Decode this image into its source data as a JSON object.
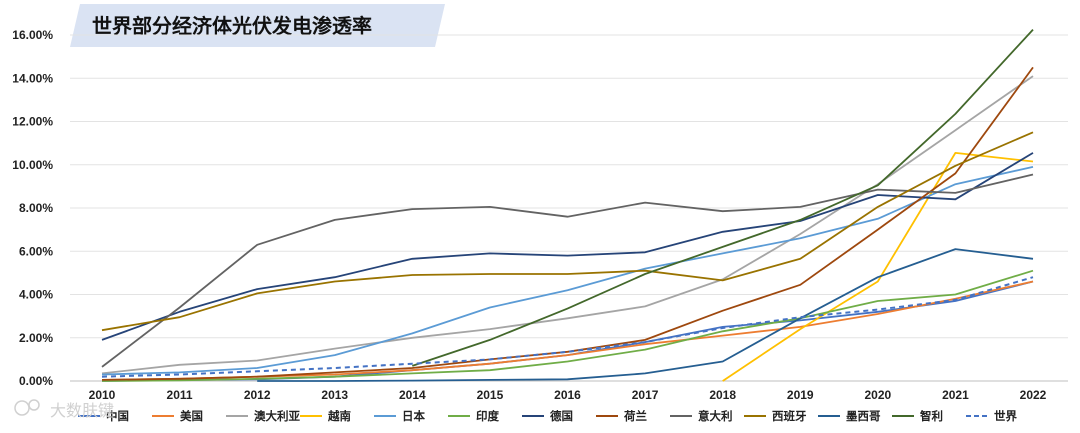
{
  "chart_data": {
    "type": "line",
    "title": "世界部分经济体光伏发电渗透率",
    "xlabel": "",
    "ylabel": "",
    "x": [
      "2010",
      "2011",
      "2012",
      "2013",
      "2014",
      "2015",
      "2016",
      "2017",
      "2018",
      "2019",
      "2020",
      "2021",
      "2022"
    ],
    "ylim": [
      0,
      16
    ],
    "yticks": [
      "0.00%",
      "2.00%",
      "4.00%",
      "6.00%",
      "8.00%",
      "10.00%",
      "12.00%",
      "14.00%",
      "16.00%"
    ],
    "grid": true,
    "legend_position": "bottom",
    "series": [
      {
        "name": "中国",
        "color": "#4472c4",
        "dash": false,
        "values": [
          0.0,
          0.05,
          0.08,
          0.2,
          0.5,
          0.8,
          1.2,
          1.8,
          2.5,
          2.8,
          3.2,
          3.7,
          4.6
        ]
      },
      {
        "name": "美国",
        "color": "#ed7d31",
        "dash": false,
        "values": [
          0.05,
          0.1,
          0.2,
          0.3,
          0.5,
          0.8,
          1.2,
          1.7,
          2.1,
          2.5,
          3.1,
          3.8,
          4.6
        ]
      },
      {
        "name": "澳大利亚",
        "color": "#a5a5a5",
        "dash": false,
        "values": [
          0.35,
          0.75,
          0.95,
          1.5,
          2.0,
          2.4,
          2.9,
          3.45,
          4.7,
          6.8,
          9.1,
          11.6,
          14.1
        ]
      },
      {
        "name": "越南",
        "color": "#ffc000",
        "dash": false,
        "values": [
          null,
          null,
          null,
          null,
          null,
          null,
          null,
          null,
          0.0,
          2.4,
          4.6,
          10.55,
          10.15
        ]
      },
      {
        "name": "日本",
        "color": "#5b9bd5",
        "dash": false,
        "values": [
          0.3,
          0.4,
          0.6,
          1.2,
          2.2,
          3.4,
          4.2,
          5.2,
          5.9,
          6.6,
          7.5,
          9.1,
          9.9
        ]
      },
      {
        "name": "印度",
        "color": "#70ad47",
        "dash": false,
        "values": [
          0.0,
          0.03,
          0.1,
          0.2,
          0.35,
          0.5,
          0.9,
          1.45,
          2.3,
          2.9,
          3.7,
          4.0,
          5.1
        ]
      },
      {
        "name": "德国",
        "color": "#264478",
        "dash": false,
        "values": [
          1.9,
          3.2,
          4.25,
          4.8,
          5.65,
          5.9,
          5.8,
          5.95,
          6.9,
          7.4,
          8.6,
          8.4,
          10.55
        ]
      },
      {
        "name": "荷兰",
        "color": "#9e480e",
        "dash": false,
        "values": [
          0.05,
          0.1,
          0.2,
          0.4,
          0.6,
          1.0,
          1.35,
          1.9,
          3.25,
          4.45,
          7.0,
          9.6,
          14.5
        ]
      },
      {
        "name": "意大利",
        "color": "#636363",
        "dash": false,
        "values": [
          0.65,
          3.4,
          6.3,
          7.45,
          7.95,
          8.05,
          7.6,
          8.25,
          7.85,
          8.05,
          8.85,
          8.7,
          9.55
        ]
      },
      {
        "name": "西班牙",
        "color": "#997300",
        "dash": false,
        "values": [
          2.35,
          2.95,
          4.05,
          4.6,
          4.9,
          4.95,
          4.95,
          5.1,
          4.65,
          5.65,
          8.05,
          9.95,
          11.5
        ]
      },
      {
        "name": "墨西哥",
        "color": "#255e91",
        "dash": false,
        "values": [
          null,
          null,
          0.0,
          0.0,
          0.02,
          0.05,
          0.08,
          0.35,
          0.9,
          2.9,
          4.8,
          6.1,
          5.65
        ]
      },
      {
        "name": "智利",
        "color": "#43682b",
        "dash": false,
        "values": [
          null,
          null,
          null,
          null,
          0.7,
          1.9,
          3.35,
          4.95,
          6.2,
          7.45,
          9.05,
          12.35,
          16.25
        ]
      },
      {
        "name": "世界",
        "color": "#4472c4",
        "dash": true,
        "values": [
          0.2,
          0.3,
          0.45,
          0.6,
          0.8,
          1.0,
          1.35,
          1.8,
          2.45,
          2.95,
          3.3,
          3.75,
          4.8
        ]
      }
    ]
  },
  "watermark": "大数肤键"
}
